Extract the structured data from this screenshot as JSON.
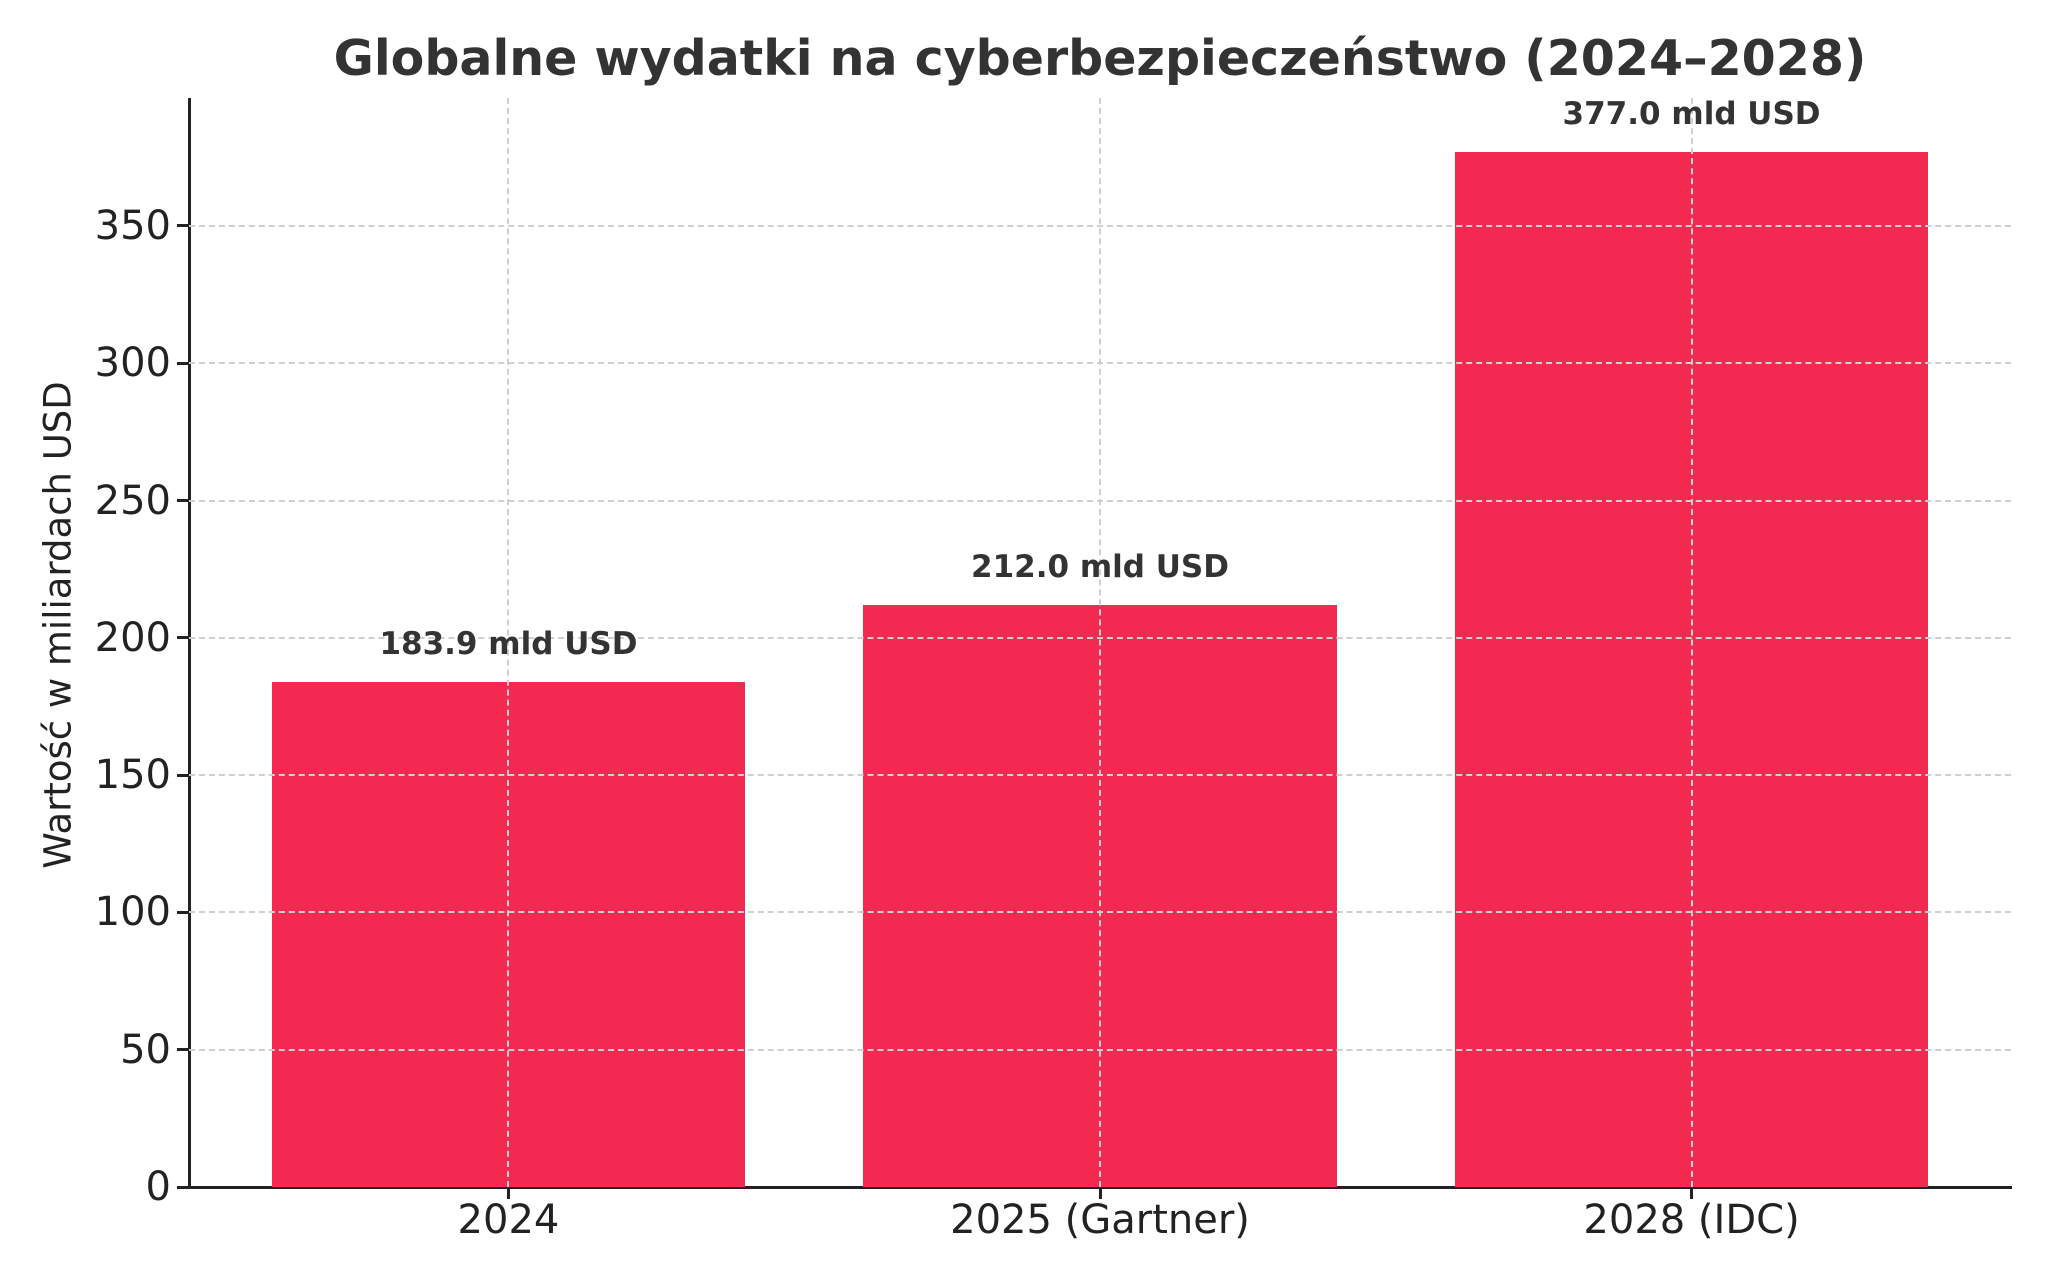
{
  "chart_data": {
    "type": "bar",
    "title": "Globalne wydatki na cyberbezpieczeństwo (2024–2028)",
    "xlabel": "",
    "ylabel": "Wartość w miliardach USD",
    "categories": [
      "2024",
      "2025 (Gartner)",
      "2028 (IDC)"
    ],
    "values": [
      183.9,
      212.0,
      377.0
    ],
    "value_labels": [
      "183.9 mld USD",
      "212.0 mld USD",
      "377.0 mld USD"
    ],
    "ylim": [
      0,
      396.6
    ],
    "xlim": [
      -0.54,
      2.54
    ],
    "yticks": [
      0,
      50,
      100,
      150,
      200,
      250,
      300,
      350
    ],
    "bar_width": 0.8,
    "grid": true,
    "grid_style": "dashed",
    "legend": null,
    "colors": {
      "bar": "#F22A52",
      "text": "#333333",
      "grid": "#CFCFCF",
      "axis": "#222222"
    }
  }
}
